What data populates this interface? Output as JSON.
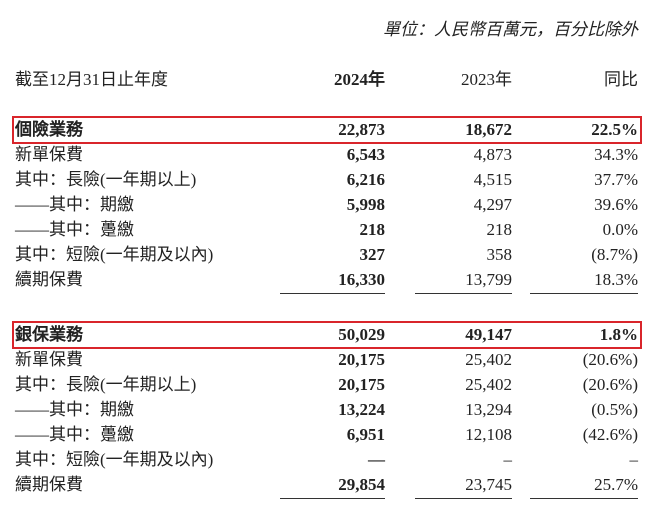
{
  "unit_note": "單位：人民幣百萬元，百分比除外",
  "header": [
    "截至12月31日止年度",
    "2024年",
    "2023年",
    "同比"
  ],
  "sections": [
    {
      "rows": [
        [
          "個險業務",
          "22,873",
          "18,672",
          "22.5%"
        ],
        [
          "新單保費",
          "6,543",
          "4,873",
          "34.3%"
        ],
        [
          "其中：長險(一年期以上)",
          "6,216",
          "4,515",
          "37.7%"
        ],
        [
          "——其中：期繳",
          "5,998",
          "4,297",
          "39.6%"
        ],
        [
          "——其中：躉繳",
          "218",
          "218",
          "0.0%"
        ],
        [
          "其中：短險(一年期及以內)",
          "327",
          "358",
          "(8.7%)"
        ],
        [
          "續期保費",
          "16,330",
          "13,799",
          "18.3%"
        ]
      ]
    },
    {
      "rows": [
        [
          "銀保業務",
          "50,029",
          "49,147",
          "1.8%"
        ],
        [
          "新單保費",
          "20,175",
          "25,402",
          "(20.6%)"
        ],
        [
          "其中：長險(一年期以上)",
          "20,175",
          "25,402",
          "(20.6%)"
        ],
        [
          "——其中：期繳",
          "13,224",
          "13,294",
          "(0.5%)"
        ],
        [
          "——其中：躉繳",
          "6,951",
          "12,108",
          "(42.6%)"
        ],
        [
          "其中：短險(一年期及以內)",
          "—",
          "–",
          "–"
        ],
        [
          "續期保費",
          "29,854",
          "23,745",
          "25.7%"
        ]
      ]
    }
  ]
}
